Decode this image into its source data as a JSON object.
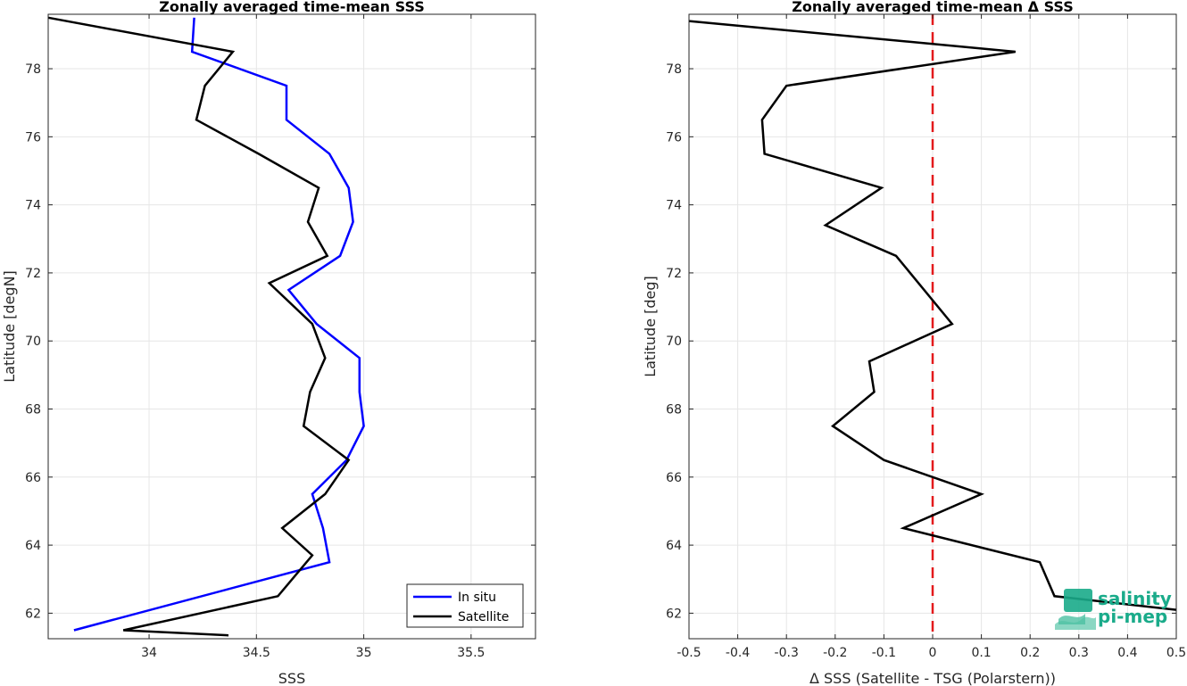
{
  "chart_data": [
    {
      "type": "line",
      "title": "Zonally averaged time-mean SSS",
      "xlabel": "SSS",
      "ylabel": "Latitude [degN]",
      "xlim": [
        33.53,
        35.8
      ],
      "ylim": [
        61.25,
        79.6
      ],
      "xticks": [
        34,
        34.5,
        35,
        35.5
      ],
      "xtick_labels": [
        "34",
        "34.5",
        "35",
        "35.5"
      ],
      "yticks": [
        62,
        64,
        66,
        68,
        70,
        72,
        74,
        76,
        78
      ],
      "ytick_labels": [
        "62",
        "64",
        "66",
        "68",
        "70",
        "72",
        "74",
        "76",
        "78"
      ],
      "grid": true,
      "legend_position": "bottom-right",
      "series": [
        {
          "name": "In situ",
          "color": "#0000ff",
          "x": [
            34.21,
            34.2,
            34.64,
            34.64,
            34.84,
            34.93,
            34.95,
            34.89,
            34.65,
            34.78,
            34.98,
            34.98,
            35.0,
            34.92,
            34.76,
            34.81,
            34.84,
            33.65
          ],
          "y": [
            79.5,
            78.5,
            77.5,
            76.5,
            75.5,
            74.5,
            73.5,
            72.5,
            71.5,
            70.5,
            69.5,
            68.5,
            67.5,
            66.5,
            65.5,
            64.5,
            63.5,
            61.5
          ]
        },
        {
          "name": "Satellite",
          "color": "#000000",
          "x": [
            33.53,
            34.39,
            34.26,
            34.22,
            34.51,
            34.79,
            34.74,
            34.83,
            34.56,
            34.76,
            34.82,
            34.75,
            34.72,
            34.93,
            34.82,
            34.62,
            34.76,
            34.6,
            33.88,
            34.37
          ],
          "y": [
            79.5,
            78.5,
            77.5,
            76.5,
            75.5,
            74.5,
            73.5,
            72.5,
            71.7,
            70.5,
            69.5,
            68.5,
            67.5,
            66.5,
            65.5,
            64.5,
            63.7,
            62.5,
            61.5,
            61.35
          ]
        }
      ]
    },
    {
      "type": "line",
      "title": "Zonally averaged time-mean Δ SSS",
      "xlabel": "Δ SSS (Satellite - TSG (Polarstern))",
      "ylabel": "Latitude [deg]",
      "xlim": [
        -0.5,
        0.5
      ],
      "ylim": [
        61.25,
        79.6
      ],
      "xticks": [
        -0.5,
        -0.4,
        -0.3,
        -0.2,
        -0.1,
        0,
        0.1,
        0.2,
        0.3,
        0.4,
        0.5
      ],
      "xtick_labels": [
        "-0.5",
        "-0.4",
        "-0.3",
        "-0.2",
        "-0.1",
        "0",
        "0.1",
        "0.2",
        "0.3",
        "0.4",
        "0.5"
      ],
      "yticks": [
        62,
        64,
        66,
        68,
        70,
        72,
        74,
        76,
        78
      ],
      "ytick_labels": [
        "62",
        "64",
        "66",
        "68",
        "70",
        "72",
        "74",
        "76",
        "78"
      ],
      "grid": true,
      "reference_line": {
        "x": 0,
        "color": "#e31a1c",
        "style": "dashed"
      },
      "series": [
        {
          "color": "#000000",
          "x": [
            -0.5,
            0.17,
            -0.3,
            -0.35,
            -0.345,
            -0.105,
            -0.22,
            -0.075,
            0.04,
            -0.13,
            -0.12,
            -0.205,
            -0.1,
            0.1,
            -0.06,
            0.22,
            0.25,
            0.5
          ],
          "y": [
            79.4,
            78.5,
            77.5,
            76.5,
            75.5,
            74.5,
            73.4,
            72.5,
            70.5,
            69.4,
            68.5,
            67.5,
            66.5,
            65.5,
            64.5,
            63.5,
            62.5,
            62.1
          ]
        }
      ]
    }
  ],
  "logo": {
    "line1": "salinity",
    "line2": "pi-mep",
    "color": "#1aab8a"
  }
}
